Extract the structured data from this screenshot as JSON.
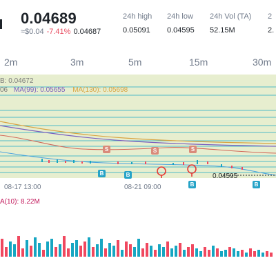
{
  "ticker": {
    "price": "0.04689",
    "usd_price": "≈$0.04",
    "change_pct": "-7.41%",
    "ref_price": "0.04687"
  },
  "stats": [
    {
      "label": "24h high",
      "value": "0.05091"
    },
    {
      "label": "24h low",
      "value": "0.04595"
    },
    {
      "label": "24h Vol (TA)",
      "value": "52.15M"
    },
    {
      "label": "2",
      "value": "2."
    }
  ],
  "intervals": [
    "2m",
    "3m",
    "5m",
    "15m",
    "30m"
  ],
  "main_legend": {
    "line1": "B: 0.04672",
    "ma99": "MA(99): 0.05655",
    "ma130": "MA(130): 0.05698",
    "prefix": "06"
  },
  "x_labels": [
    "08-17 13:00",
    "08-21 09:00"
  ],
  "last_price_label": "0.04595",
  "vol_legend": "A(10): 8.22M",
  "colors": {
    "up": "#16a6c2",
    "down": "#f0485f",
    "negative_text": "#e84b5f",
    "chart_bg": "#e7eecf",
    "buy_badge": "#26a3c7",
    "sell_badge": "#d98a7a"
  },
  "icons": [
    "sell-marker-icon",
    "buy-marker-icon",
    "pin-marker-icon"
  ],
  "badges": {
    "buy": "B",
    "sell": "S"
  }
}
